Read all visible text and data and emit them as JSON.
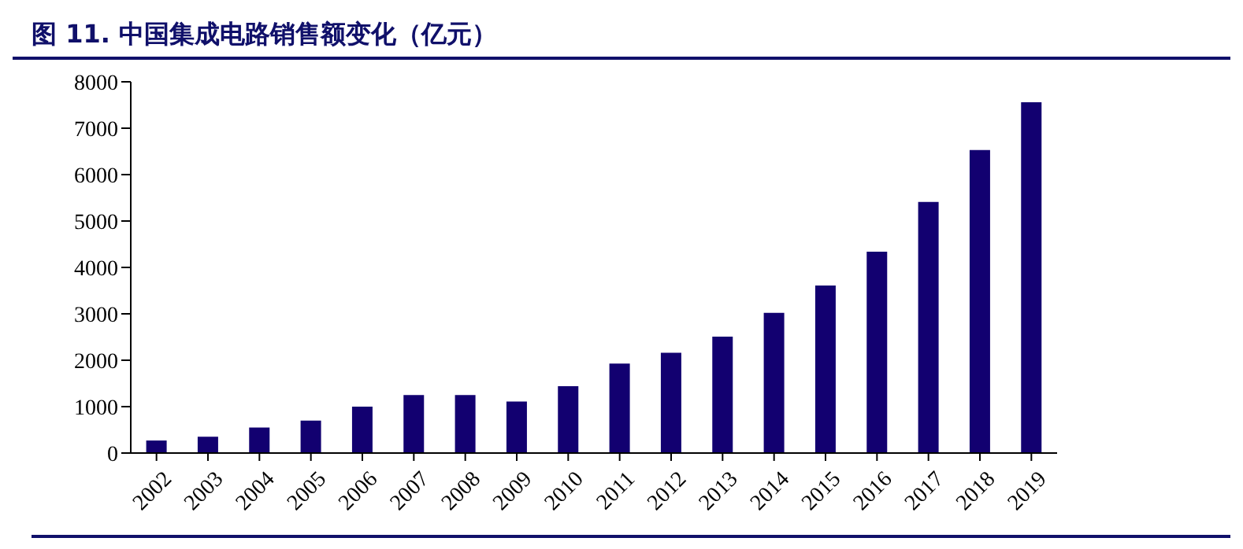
{
  "chart_data": {
    "type": "bar",
    "title": "图 11. 中国集成电路销售额变化（亿元）",
    "categories": [
      "2002",
      "2003",
      "2004",
      "2005",
      "2006",
      "2007",
      "2008",
      "2009",
      "2010",
      "2011",
      "2012",
      "2013",
      "2014",
      "2015",
      "2016",
      "2017",
      "2018",
      "2019"
    ],
    "values": [
      270,
      350,
      550,
      700,
      1000,
      1250,
      1250,
      1110,
      1440,
      1930,
      2160,
      2510,
      3020,
      3610,
      4340,
      5410,
      6530,
      7560
    ],
    "color": "#120070",
    "ylim": [
      0,
      8000
    ],
    "yticks": [
      0,
      1000,
      2000,
      3000,
      4000,
      5000,
      6000,
      7000,
      8000
    ],
    "grid": false,
    "legend": false
  }
}
